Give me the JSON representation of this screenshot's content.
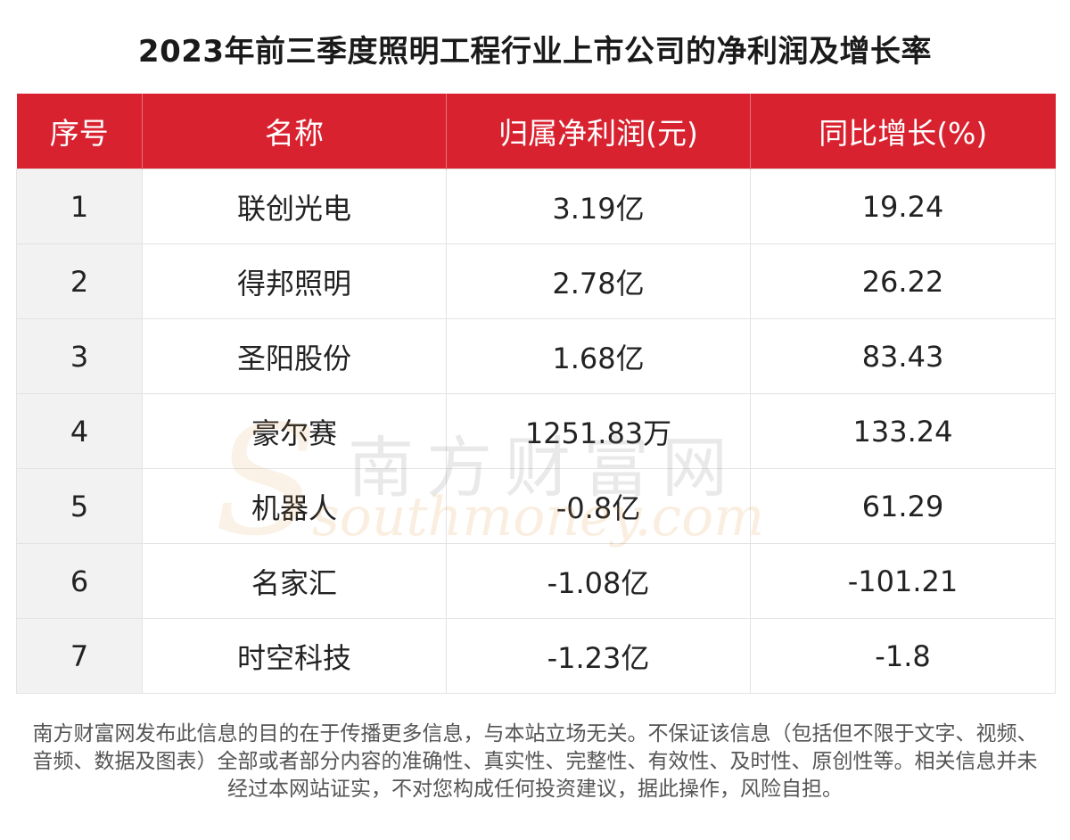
{
  "title": "2023年前三季度照明工程行业上市公司的净利润及增长率",
  "table": {
    "headers": [
      "序号",
      "名称",
      "归属净利润(元)",
      "同比增长(%)"
    ],
    "rows": [
      {
        "idx": "1",
        "name": "联创光电",
        "profit": "3.19亿",
        "growth": "19.24"
      },
      {
        "idx": "2",
        "name": "得邦照明",
        "profit": "2.78亿",
        "growth": "26.22"
      },
      {
        "idx": "3",
        "name": "圣阳股份",
        "profit": "1.68亿",
        "growth": "83.43"
      },
      {
        "idx": "4",
        "name": "豪尔赛",
        "profit": "1251.83万",
        "growth": "133.24"
      },
      {
        "idx": "5",
        "name": "机器人",
        "profit": "-0.8亿",
        "growth": "61.29"
      },
      {
        "idx": "6",
        "name": "名家汇",
        "profit": "-1.08亿",
        "growth": "-101.21"
      },
      {
        "idx": "7",
        "name": "时空科技",
        "profit": "-1.23亿",
        "growth": "-1.8"
      }
    ]
  },
  "watermark": {
    "cn": "南方财富网",
    "en": "southmoney.com",
    "logo_letter": "S"
  },
  "disclaimer": "南方财富网发布此信息的目的在于传播更多信息，与本站立场无关。不保证该信息（包括但不限于文字、视频、音频、数据及图表）全部或者部分内容的准确性、真实性、完整性、有效性、及时性、原创性等。相关信息并未经过本网站证实，不对您构成任何投资建议，据此操作，风险自担。",
  "colors": {
    "header_bg": "#d92230",
    "header_text": "#ffffff",
    "index_col_bg": "#f2f2f2"
  }
}
